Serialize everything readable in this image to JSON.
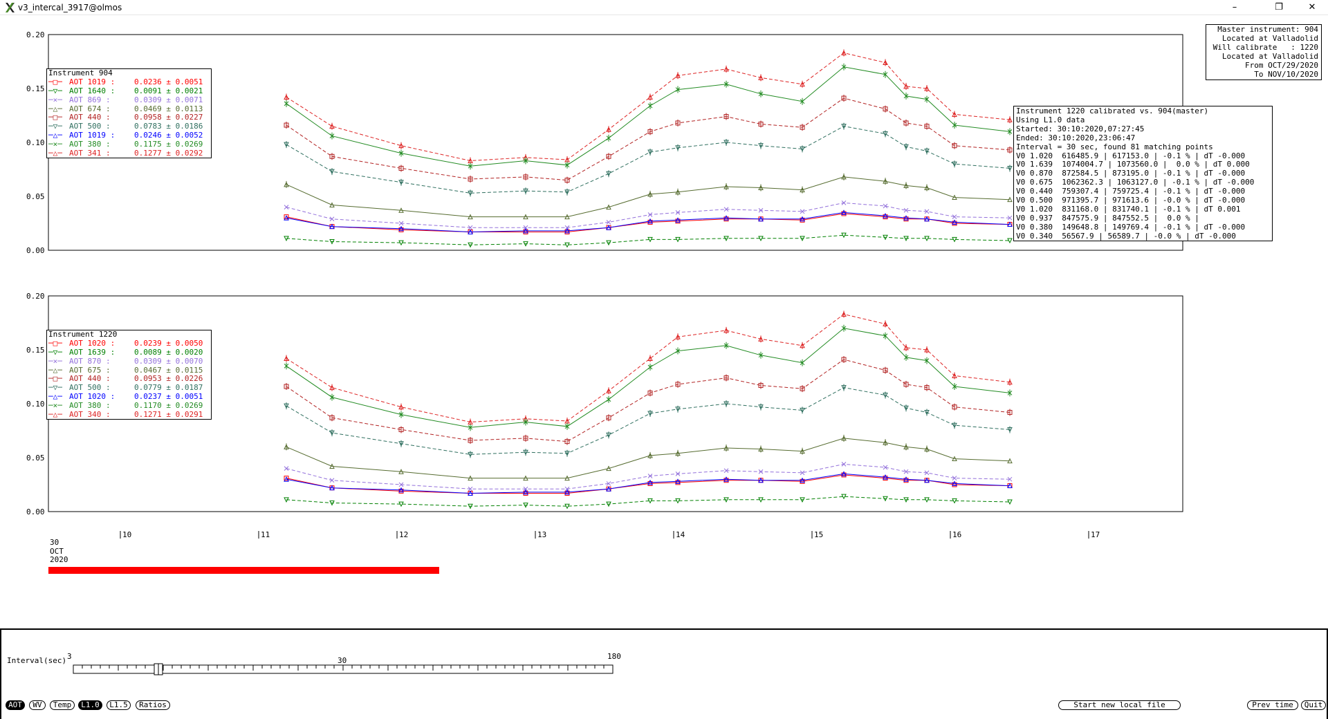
{
  "window": {
    "title": "v3_intercal_3917@olmos",
    "controls": [
      "–",
      "❐",
      "✕"
    ]
  },
  "master_box": {
    "lines": [
      "Master instrument: 904",
      " Located at Valladolid",
      "Will calibrate   : 1220",
      " Located at Valladolid",
      "    From OCT/29/2020",
      "    To NOV/10/2020"
    ]
  },
  "calib_box": {
    "lines": [
      "Instrument 1220 calibrated vs. 904(master)",
      "Using L1.0 data",
      "Started: 30:10:2020,07:27:45",
      "Ended: 30:10:2020,23:06:47",
      "Interval = 30 sec, found 81 matching points",
      "V0 1.020  616485.9 | 617153.0 | -0.1 % | dT -0.000",
      "V0 1.639  1074004.7 | 1073560.0 |  0.0 % | dT 0.000",
      "V0 0.870  872584.5 | 873195.0 | -0.1 % | dT -0.000",
      "V0 0.675  1062362.3 | 1063127.0 | -0.1 % | dT -0.000",
      "V0 0.440  759307.4 | 759725.4 | -0.1 % | dT -0.000",
      "V0 0.500  971395.7 | 971613.6 | -0.0 % | dT -0.000",
      "V0 1.020  831168.0 | 831740.1 | -0.1 % | dT 0.001",
      "V0 0.937  847575.9 | 847552.5 |  0.0 % |",
      "V0 0.380  149648.8 | 149769.4 | -0.1 % | dT -0.000",
      "V0 0.340  56567.9 | 56589.7 | -0.0 % | dT -0.000"
    ]
  },
  "legend_top": {
    "title": "Instrument 904",
    "entries": [
      {
        "label": "AOT 1019 :",
        "value": "0.0236 ± 0.0051",
        "color": "#ff0000",
        "symbol": "square"
      },
      {
        "label": "AOT 1640 :",
        "value": "0.0091 ± 0.0021",
        "color": "#008000",
        "symbol": "triangle-down"
      },
      {
        "label": "AOT 869 :",
        "value": "0.0309 ± 0.0071",
        "color": "#9370db",
        "symbol": "cross"
      },
      {
        "label": "AOT 674 :",
        "value": "0.0469 ± 0.0113",
        "color": "#556b2f",
        "symbol": "triangle"
      },
      {
        "label": "AOT 440 :",
        "value": "0.0958 ± 0.0227",
        "color": "#b22222",
        "symbol": "square"
      },
      {
        "label": "AOT 500 :",
        "value": "0.0783 ± 0.0186",
        "color": "#2f6f5f",
        "symbol": "triangle-down"
      },
      {
        "label": "AOT 1019 :",
        "value": "0.0246 ± 0.0052",
        "color": "#0000ff",
        "symbol": "triangle"
      },
      {
        "label": "AOT 380 :",
        "value": "0.1175 ± 0.0269",
        "color": "#228b22",
        "symbol": "cross"
      },
      {
        "label": "AOT 341 :",
        "value": "0.1277 ± 0.0292",
        "color": "#dd2222",
        "symbol": "triangle"
      }
    ]
  },
  "legend_bottom": {
    "title": "Instrument 1220",
    "entries": [
      {
        "label": "AOT 1020 :",
        "value": "0.0239 ± 0.0050",
        "color": "#ff0000",
        "symbol": "square"
      },
      {
        "label": "AOT 1639 :",
        "value": "0.0089 ± 0.0020",
        "color": "#008000",
        "symbol": "triangle-down"
      },
      {
        "label": "AOT 870 :",
        "value": "0.0309 ± 0.0070",
        "color": "#9370db",
        "symbol": "cross"
      },
      {
        "label": "AOT 675 :",
        "value": "0.0467 ± 0.0115",
        "color": "#556b2f",
        "symbol": "triangle"
      },
      {
        "label": "AOT 440 :",
        "value": "0.0953 ± 0.0226",
        "color": "#b22222",
        "symbol": "square"
      },
      {
        "label": "AOT 500 :",
        "value": "0.0779 ± 0.0187",
        "color": "#2f6f5f",
        "symbol": "triangle-down"
      },
      {
        "label": "AOT 1020 :",
        "value": "0.0237 ± 0.0051",
        "color": "#0000ff",
        "symbol": "triangle"
      },
      {
        "label": "AOT 380 :",
        "value": "0.1170 ± 0.0269",
        "color": "#228b22",
        "symbol": "cross"
      },
      {
        "label": "AOT 340 :",
        "value": "0.1271 ± 0.0291",
        "color": "#dd2222",
        "symbol": "triangle"
      }
    ]
  },
  "chart_data": [
    {
      "type": "line",
      "instrument": "904",
      "xlabel": "",
      "ylabel": "",
      "x_ticks": [
        "10",
        "11",
        "12",
        "13",
        "14",
        "15",
        "16",
        "17"
      ],
      "x_start_label": "30\nOCT\n2020",
      "xlim": [
        9.45,
        17.65
      ],
      "ylim": [
        0.0,
        0.2
      ],
      "y_ticks": [
        "0.00",
        "0.05",
        "0.10",
        "0.15",
        "0.20"
      ],
      "series_order_note": "",
      "x": [
        11.17,
        11.5,
        12.0,
        12.5,
        12.9,
        13.2,
        13.5,
        13.8,
        14.0,
        14.35,
        14.6,
        14.9,
        15.2,
        15.5,
        15.65,
        15.8,
        16.0,
        16.4
      ],
      "series": [
        {
          "name": "AOT 341",
          "color": "#dd2222",
          "dash": true,
          "values": [
            0.142,
            0.115,
            0.097,
            0.083,
            0.086,
            0.084,
            0.112,
            0.142,
            0.162,
            0.168,
            0.16,
            0.154,
            0.183,
            0.174,
            0.152,
            0.15,
            0.126,
            0.121
          ]
        },
        {
          "name": "AOT 380",
          "color": "#228b22",
          "dash": false,
          "values": [
            0.136,
            0.106,
            0.09,
            0.078,
            0.083,
            0.079,
            0.104,
            0.134,
            0.149,
            0.154,
            0.145,
            0.138,
            0.17,
            0.163,
            0.143,
            0.14,
            0.116,
            0.11
          ]
        },
        {
          "name": "AOT 440",
          "color": "#b22222",
          "dash": true,
          "values": [
            0.116,
            0.087,
            0.076,
            0.066,
            0.068,
            0.065,
            0.087,
            0.11,
            0.118,
            0.124,
            0.117,
            0.114,
            0.141,
            0.131,
            0.118,
            0.115,
            0.097,
            0.093
          ]
        },
        {
          "name": "AOT 500",
          "color": "#2f6f5f",
          "dash": true,
          "values": [
            0.098,
            0.073,
            0.063,
            0.053,
            0.055,
            0.054,
            0.071,
            0.091,
            0.095,
            0.1,
            0.097,
            0.094,
            0.115,
            0.108,
            0.096,
            0.092,
            0.08,
            0.076
          ]
        },
        {
          "name": "AOT 674",
          "color": "#556b2f",
          "dash": false,
          "values": [
            0.061,
            0.042,
            0.037,
            0.031,
            0.031,
            0.031,
            0.04,
            0.052,
            0.054,
            0.059,
            0.058,
            0.056,
            0.068,
            0.064,
            0.06,
            0.058,
            0.049,
            0.047
          ]
        },
        {
          "name": "AOT 869",
          "color": "#9370db",
          "dash": true,
          "values": [
            0.04,
            0.029,
            0.025,
            0.021,
            0.021,
            0.021,
            0.026,
            0.033,
            0.035,
            0.038,
            0.037,
            0.036,
            0.044,
            0.041,
            0.037,
            0.036,
            0.031,
            0.03
          ]
        },
        {
          "name": "AOT 1019",
          "color": "#ff0000",
          "dash": false,
          "values": [
            0.031,
            0.022,
            0.019,
            0.017,
            0.017,
            0.017,
            0.021,
            0.026,
            0.027,
            0.029,
            0.029,
            0.028,
            0.034,
            0.031,
            0.029,
            0.029,
            0.025,
            0.024
          ]
        },
        {
          "name": "AOT 1019",
          "color": "#0000ff",
          "dash": false,
          "values": [
            0.03,
            0.022,
            0.02,
            0.017,
            0.018,
            0.018,
            0.021,
            0.027,
            0.028,
            0.03,
            0.029,
            0.029,
            0.035,
            0.032,
            0.03,
            0.029,
            0.026,
            0.024
          ]
        },
        {
          "name": "AOT 1640",
          "color": "#008000",
          "dash": true,
          "values": [
            0.011,
            0.008,
            0.007,
            0.005,
            0.006,
            0.005,
            0.007,
            0.01,
            0.01,
            0.011,
            0.011,
            0.011,
            0.014,
            0.012,
            0.011,
            0.011,
            0.01,
            0.009
          ]
        }
      ]
    },
    {
      "type": "line",
      "instrument": "1220",
      "xlabel": "",
      "ylabel": "",
      "x_ticks": [
        "10",
        "11",
        "12",
        "13",
        "14",
        "15",
        "16",
        "17"
      ],
      "xlim": [
        9.45,
        17.65
      ],
      "ylim": [
        0.0,
        0.2
      ],
      "y_ticks": [
        "0.00",
        "0.05",
        "0.10",
        "0.15",
        "0.20"
      ],
      "x": [
        11.17,
        11.5,
        12.0,
        12.5,
        12.9,
        13.2,
        13.5,
        13.8,
        14.0,
        14.35,
        14.6,
        14.9,
        15.2,
        15.5,
        15.65,
        15.8,
        16.0,
        16.4
      ],
      "series": [
        {
          "name": "AOT 340",
          "color": "#dd2222",
          "dash": true,
          "values": [
            0.142,
            0.115,
            0.097,
            0.083,
            0.086,
            0.084,
            0.112,
            0.142,
            0.162,
            0.168,
            0.16,
            0.154,
            0.183,
            0.174,
            0.152,
            0.15,
            0.126,
            0.12
          ]
        },
        {
          "name": "AOT 380",
          "color": "#228b22",
          "dash": false,
          "values": [
            0.135,
            0.106,
            0.09,
            0.078,
            0.083,
            0.079,
            0.104,
            0.134,
            0.149,
            0.154,
            0.145,
            0.138,
            0.17,
            0.163,
            0.143,
            0.14,
            0.116,
            0.11
          ]
        },
        {
          "name": "AOT 440",
          "color": "#b22222",
          "dash": true,
          "values": [
            0.116,
            0.087,
            0.076,
            0.066,
            0.068,
            0.065,
            0.087,
            0.11,
            0.118,
            0.124,
            0.117,
            0.114,
            0.141,
            0.131,
            0.118,
            0.115,
            0.097,
            0.092
          ]
        },
        {
          "name": "AOT 500",
          "color": "#2f6f5f",
          "dash": true,
          "values": [
            0.098,
            0.073,
            0.063,
            0.053,
            0.055,
            0.054,
            0.071,
            0.091,
            0.095,
            0.1,
            0.097,
            0.094,
            0.115,
            0.108,
            0.096,
            0.092,
            0.08,
            0.076
          ]
        },
        {
          "name": "AOT 675",
          "color": "#556b2f",
          "dash": false,
          "values": [
            0.06,
            0.042,
            0.037,
            0.031,
            0.031,
            0.031,
            0.04,
            0.052,
            0.054,
            0.059,
            0.058,
            0.056,
            0.068,
            0.064,
            0.06,
            0.058,
            0.049,
            0.047
          ]
        },
        {
          "name": "AOT 870",
          "color": "#9370db",
          "dash": true,
          "values": [
            0.04,
            0.029,
            0.025,
            0.021,
            0.021,
            0.021,
            0.026,
            0.033,
            0.035,
            0.038,
            0.037,
            0.036,
            0.044,
            0.041,
            0.037,
            0.036,
            0.031,
            0.03
          ]
        },
        {
          "name": "AOT 1020",
          "color": "#ff0000",
          "dash": false,
          "values": [
            0.031,
            0.022,
            0.019,
            0.017,
            0.017,
            0.017,
            0.021,
            0.026,
            0.027,
            0.029,
            0.029,
            0.028,
            0.034,
            0.031,
            0.029,
            0.029,
            0.025,
            0.024
          ]
        },
        {
          "name": "AOT 1020",
          "color": "#0000ff",
          "dash": false,
          "values": [
            0.03,
            0.022,
            0.02,
            0.017,
            0.018,
            0.018,
            0.021,
            0.027,
            0.028,
            0.03,
            0.029,
            0.029,
            0.035,
            0.032,
            0.03,
            0.029,
            0.026,
            0.024
          ]
        },
        {
          "name": "AOT 1639",
          "color": "#008000",
          "dash": true,
          "values": [
            0.011,
            0.008,
            0.007,
            0.005,
            0.006,
            0.005,
            0.007,
            0.01,
            0.01,
            0.011,
            0.011,
            0.011,
            0.014,
            0.012,
            0.011,
            0.011,
            0.01,
            0.009
          ]
        }
      ]
    }
  ],
  "date_label": {
    "day": "30",
    "month": "OCT",
    "year": "2020"
  },
  "slider": {
    "label": "Interval(sec)",
    "min_label": "3",
    "mid_label": "30",
    "max_label": "180",
    "value": 30
  },
  "buttons": {
    "aot": "AOT",
    "wv": "WV",
    "temp": "Temp",
    "l10": "L1.0",
    "l15": "L1.5",
    "ratios": "Ratios",
    "start_new": "Start new local file",
    "prev_time": "Prev time",
    "quit": "Quit"
  }
}
